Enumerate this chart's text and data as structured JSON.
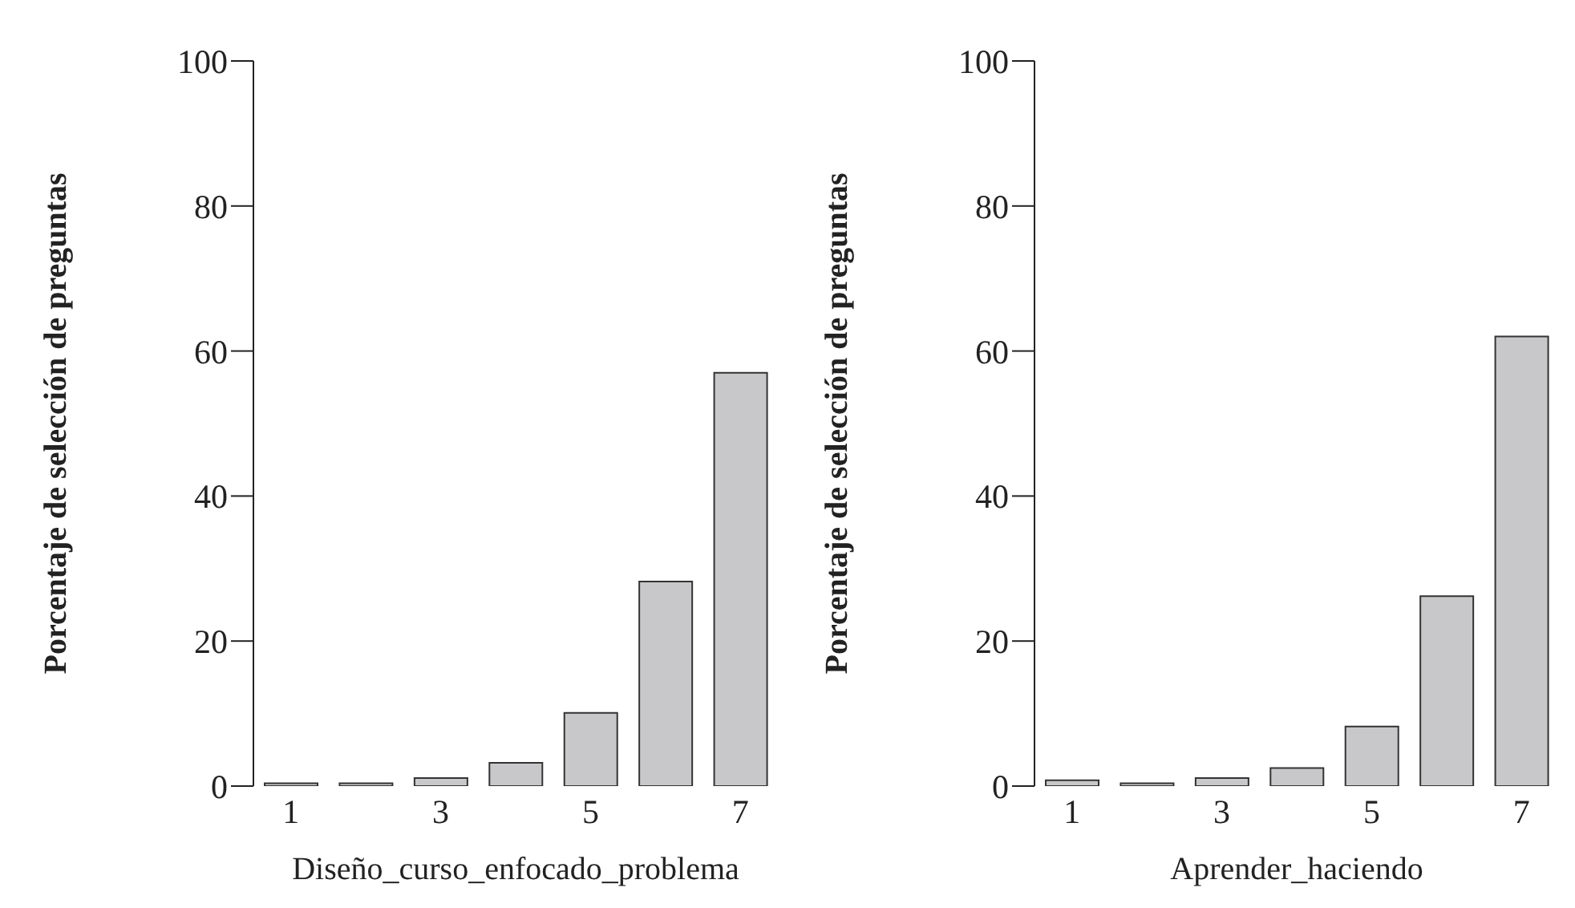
{
  "chart_data": [
    {
      "type": "bar",
      "categories": [
        "1",
        null,
        "3",
        null,
        "5",
        null,
        "7"
      ],
      "values": [
        0.4,
        0.4,
        1.1,
        3.2,
        10.1,
        28.2,
        57
      ],
      "color": "#c8c8ca",
      "xlabel": "Diseño_curso_enfocado_problema",
      "ylabel": "Porcentaje de selección de preguntas",
      "ylim": [
        0,
        100
      ],
      "yticks": [
        0,
        20,
        40,
        60,
        80,
        100
      ]
    },
    {
      "type": "bar",
      "categories": [
        "1",
        null,
        "3",
        null,
        "5",
        null,
        "7"
      ],
      "values": [
        0.8,
        0.4,
        1.1,
        2.5,
        8.2,
        26.2,
        62
      ],
      "color": "#c8c8ca",
      "xlabel": "Aprender_haciendo",
      "ylabel": "Porcentaje de selección de preguntas",
      "ylim": [
        0,
        100
      ],
      "yticks": [
        0,
        20,
        40,
        60,
        80,
        100
      ]
    }
  ]
}
